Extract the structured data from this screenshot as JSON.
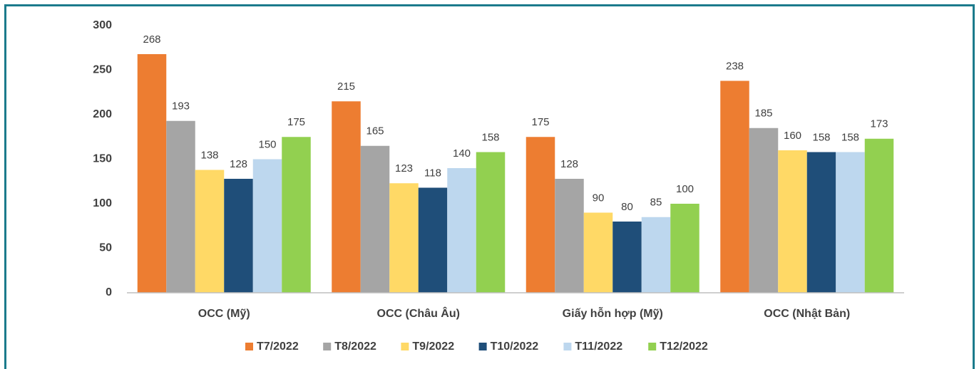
{
  "chart_data": {
    "type": "bar",
    "categories": [
      "OCC (Mỹ)",
      "OCC (Châu Âu)",
      "Giấy hỗn hợp (Mỹ)",
      "OCC (Nhật Bản)"
    ],
    "series": [
      {
        "name": "T7/2022",
        "color": "#ed7d31",
        "values": [
          268,
          215,
          175,
          238
        ]
      },
      {
        "name": "T8/2022",
        "color": "#a5a5a5",
        "values": [
          193,
          165,
          128,
          185
        ]
      },
      {
        "name": "T9/2022",
        "color": "#ffd966",
        "values": [
          138,
          123,
          90,
          160
        ]
      },
      {
        "name": "T10/2022",
        "color": "#1f4e79",
        "values": [
          128,
          118,
          80,
          158
        ]
      },
      {
        "name": "T11/2022",
        "color": "#bdd7ee",
        "values": [
          150,
          140,
          85,
          158
        ]
      },
      {
        "name": "T12/2022",
        "color": "#92d050",
        "values": [
          175,
          158,
          100,
          173
        ]
      }
    ],
    "ylim": [
      0,
      300
    ],
    "yticks": [
      0,
      50,
      100,
      150,
      200,
      250,
      300
    ],
    "grid": false,
    "legend": "bottom"
  }
}
